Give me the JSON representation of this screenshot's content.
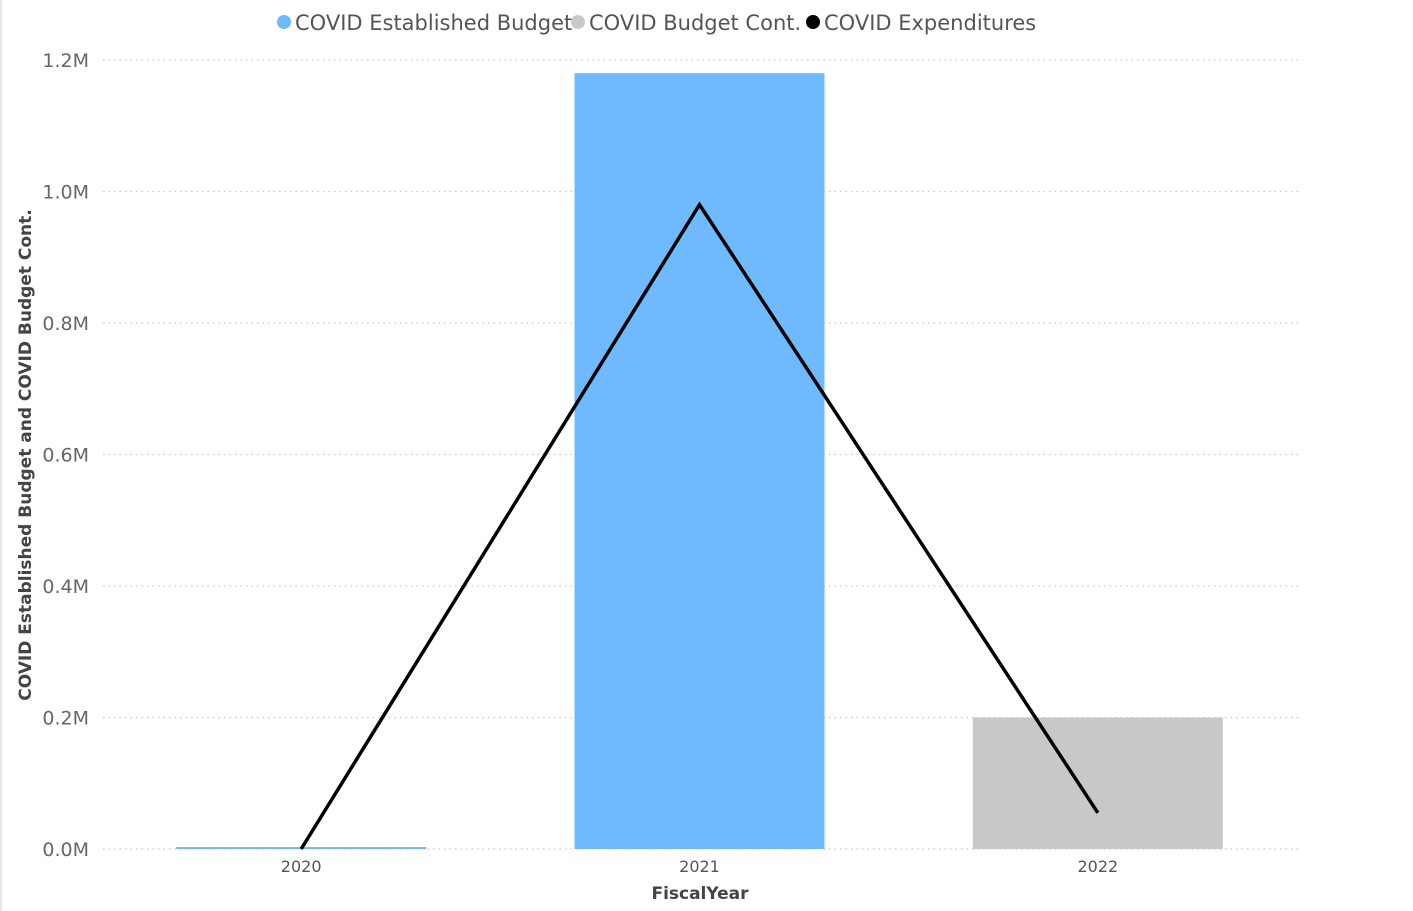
{
  "chart_data": {
    "type": "bar",
    "categories": [
      "2020",
      "2021",
      "2022"
    ],
    "series": [
      {
        "name": "COVID Established Budget",
        "kind": "bar",
        "color": "#6fbaff",
        "values": [
          0.003,
          1.18,
          0
        ]
      },
      {
        "name": "COVID Budget Cont.",
        "kind": "bar",
        "color": "#c8c8c8",
        "values": [
          0,
          0,
          0.2
        ]
      },
      {
        "name": "COVID Expenditures",
        "kind": "line",
        "color": "#000000",
        "values": [
          0.0,
          0.98,
          0.055
        ]
      }
    ],
    "xlabel": "FiscalYear",
    "ylabel": "COVID Established Budget and COVID Budget Cont.",
    "y_unit_suffix": "M",
    "ylim": [
      0,
      1.2
    ],
    "yticks": [
      0,
      0.2,
      0.4,
      0.6,
      0.8,
      1.0,
      1.2
    ],
    "ytick_labels": [
      "0.0M",
      "0.2M",
      "0.4M",
      "0.6M",
      "0.8M",
      "1.0M",
      "1.2M"
    ],
    "grid": true,
    "legend_position": "top"
  }
}
